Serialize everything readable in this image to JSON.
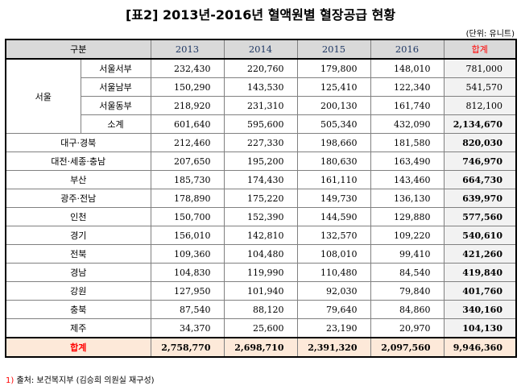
{
  "title": "[표2] 2013년-2016년 혈액원별 혈장공급 현황",
  "unit": "(단위: 유니트)",
  "header": {
    "group": "구분",
    "years": [
      "2013",
      "2014",
      "2015",
      "2016"
    ],
    "total": "합계"
  },
  "seoul": {
    "label": "서울",
    "rows": [
      {
        "name": "서울서부",
        "values": [
          "232,430",
          "220,760",
          "179,800",
          "148,010"
        ],
        "total": "781,000"
      },
      {
        "name": "서울남부",
        "values": [
          "150,290",
          "143,530",
          "125,410",
          "122,340"
        ],
        "total": "541,570"
      },
      {
        "name": "서울동부",
        "values": [
          "218,920",
          "231,310",
          "200,130",
          "161,740"
        ],
        "total": "812,100"
      },
      {
        "name": "소계",
        "values": [
          "601,640",
          "595,600",
          "505,340",
          "432,090"
        ],
        "total": "2,134,670"
      }
    ]
  },
  "rows": [
    {
      "name": "대구·경북",
      "values": [
        "212,460",
        "227,330",
        "198,660",
        "181,580"
      ],
      "total": "820,030"
    },
    {
      "name": "대전·세종·충남",
      "values": [
        "207,650",
        "195,200",
        "180,630",
        "163,490"
      ],
      "total": "746,970"
    },
    {
      "name": "부산",
      "values": [
        "185,730",
        "174,430",
        "161,110",
        "143,460"
      ],
      "total": "664,730"
    },
    {
      "name": "광주·전남",
      "values": [
        "178,890",
        "175,220",
        "149,730",
        "136,130"
      ],
      "total": "639,970"
    },
    {
      "name": "인천",
      "values": [
        "150,700",
        "152,390",
        "144,590",
        "129,880"
      ],
      "total": "577,560"
    },
    {
      "name": "경기",
      "values": [
        "156,010",
        "142,810",
        "132,570",
        "109,220"
      ],
      "total": "540,610"
    },
    {
      "name": "전북",
      "values": [
        "109,360",
        "104,480",
        "108,010",
        "99,410"
      ],
      "total": "421,260"
    },
    {
      "name": "경남",
      "values": [
        "104,830",
        "119,990",
        "110,480",
        "84,540"
      ],
      "total": "419,840"
    },
    {
      "name": "강원",
      "values": [
        "127,950",
        "101,940",
        "92,030",
        "79,840"
      ],
      "total": "401,760"
    },
    {
      "name": "충북",
      "values": [
        "87,540",
        "88,120",
        "79,640",
        "84,860"
      ],
      "total": "340,160"
    },
    {
      "name": "제주",
      "values": [
        "34,370",
        "25,600",
        "23,190",
        "20,970"
      ],
      "total": "104,130"
    }
  ],
  "grand_total": {
    "name": "합계",
    "values": [
      "2,758,770",
      "2,698,710",
      "2,391,320",
      "2,097,560"
    ],
    "total": "9,946,360"
  },
  "footnote": {
    "marker": "1)",
    "text": "출처: 보건복지부 (김승희 의원실 재구성)"
  }
}
